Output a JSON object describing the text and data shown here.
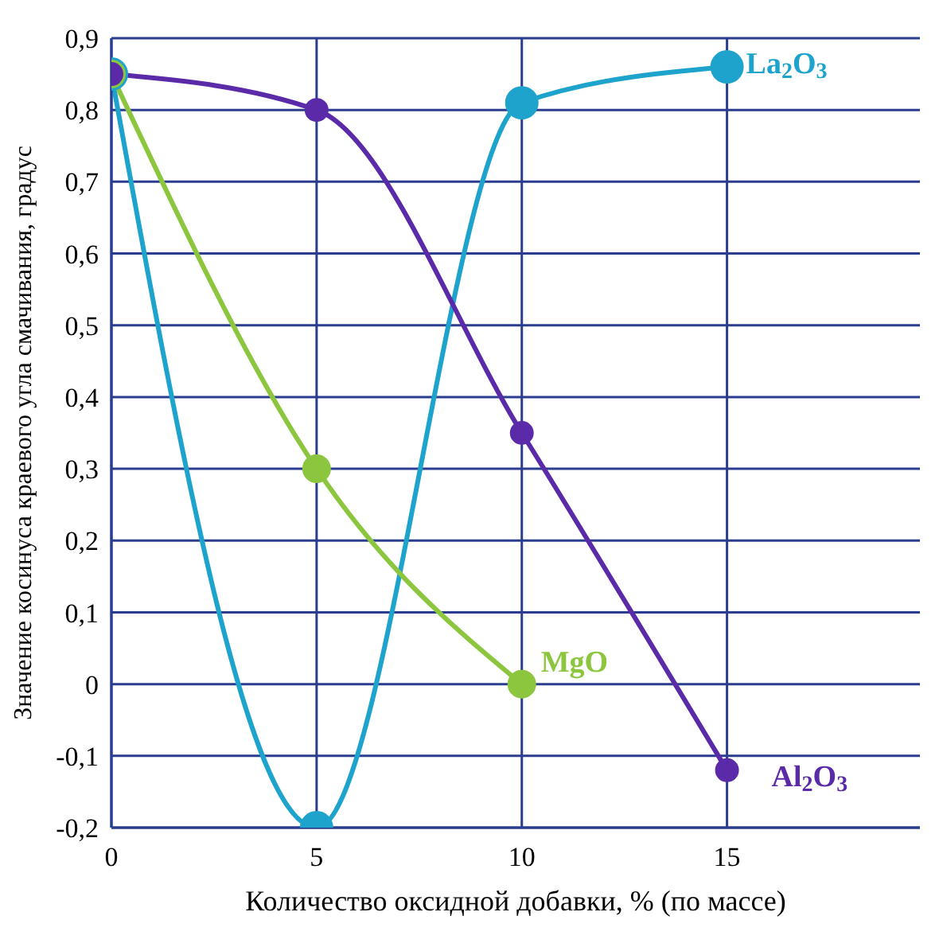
{
  "chart_data": {
    "type": "line",
    "xlabel": "Количество оксидной добавки, % (по массе)",
    "ylabel": "Значение косинуса краевого угла  смачивания, градус",
    "xlim": [
      0,
      19.7
    ],
    "xticks": [
      0,
      5,
      10,
      15
    ],
    "ylim": [
      -0.2,
      0.9
    ],
    "yticks": [
      {
        "value": -0.2,
        "label": "-0,2"
      },
      {
        "value": -0.1,
        "label": "-0,1"
      },
      {
        "value": 0,
        "label": "0"
      },
      {
        "value": 0.1,
        "label": "0,1"
      },
      {
        "value": 0.2,
        "label": "0,2"
      },
      {
        "value": 0.3,
        "label": "0,3"
      },
      {
        "value": 0.4,
        "label": "0,4"
      },
      {
        "value": 0.5,
        "label": "0,5"
      },
      {
        "value": 0.6,
        "label": "0,6"
      },
      {
        "value": 0.7,
        "label": "0,7"
      },
      {
        "value": 0.8,
        "label": "0,8"
      },
      {
        "value": 0.9,
        "label": "0,9"
      }
    ],
    "grid": true,
    "legend": false,
    "marker": "circle",
    "line_style": "solid",
    "series": [
      {
        "name": "La$_{2}$O$_{3}$",
        "color": "#1ea3cc",
        "x": [
          0,
          5,
          10,
          15
        ],
        "values": [
          0.85,
          -0.2,
          0.81,
          0.86
        ]
      },
      {
        "name": "Al$_{2}$O$_{3}$",
        "color": "#5b2aa8",
        "x": [
          0,
          5,
          10,
          15
        ],
        "values": [
          0.85,
          0.8,
          0.35,
          -0.12
        ]
      },
      {
        "name": "MgO",
        "color": "#8cc63f",
        "x": [
          0,
          5,
          10
        ],
        "values": [
          0.85,
          0.3,
          0
        ]
      }
    ]
  }
}
